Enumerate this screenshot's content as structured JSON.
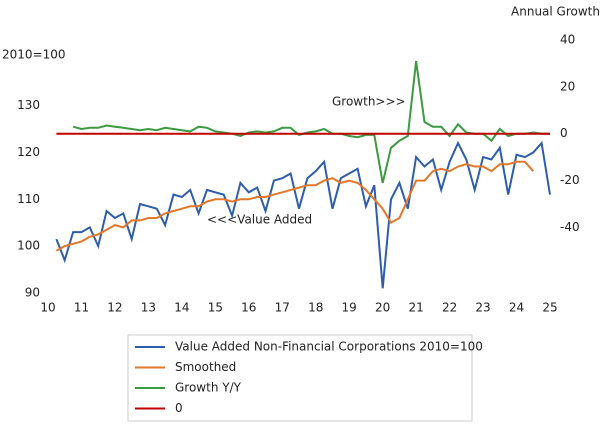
{
  "chart_data": {
    "type": "line",
    "y_label": "2010=100",
    "y2_label": "Annual Growth",
    "annotations": [
      "Growth>>>",
      "<<<Value Added"
    ],
    "x": [
      10.25,
      10.5,
      10.75,
      11,
      11.25,
      11.5,
      11.75,
      12,
      12.25,
      12.5,
      12.75,
      13,
      13.25,
      13.5,
      13.75,
      14,
      14.25,
      14.5,
      14.75,
      15,
      15.25,
      15.5,
      15.75,
      16,
      16.25,
      16.5,
      16.75,
      17,
      17.25,
      17.5,
      17.75,
      18,
      18.25,
      18.5,
      18.75,
      19,
      19.25,
      19.5,
      19.75,
      20,
      20.25,
      20.5,
      20.75,
      21,
      21.25,
      21.5,
      21.75,
      22,
      22.25,
      22.5,
      22.75,
      23,
      23.25,
      23.5,
      23.75,
      24,
      24.25,
      24.5,
      24.75,
      25
    ],
    "series": [
      {
        "name": "Value Added Non-Financial Corporations 2010=100",
        "color": "#2e5daa",
        "axis": "y",
        "values": [
          101.5,
          97,
          103,
          103,
          104,
          100,
          107.5,
          106,
          107,
          101.5,
          109,
          108.5,
          108,
          104.5,
          111,
          110.5,
          112,
          107,
          112,
          111.5,
          111,
          106.5,
          113.5,
          111.5,
          112.5,
          107.5,
          114,
          114.5,
          115.5,
          108,
          114.5,
          116,
          118,
          108,
          114.5,
          115.5,
          116.5,
          108.5,
          113,
          91,
          110,
          113.5,
          108,
          119,
          117,
          118.5,
          112,
          118,
          122,
          118.5,
          112,
          119,
          118.5,
          121,
          111,
          119.5,
          119,
          120,
          122,
          111
        ]
      },
      {
        "name": "Smoothed",
        "color": "#e2782c",
        "axis": "y",
        "values": [
          99,
          100,
          100.5,
          101,
          102,
          102.5,
          103.5,
          104.5,
          104,
          105.5,
          105.5,
          106,
          106,
          107,
          107.5,
          108,
          108.5,
          108.5,
          109.5,
          110,
          110,
          109.5,
          110,
          110,
          110.5,
          110.5,
          111,
          111.5,
          112,
          112.5,
          113,
          113,
          114,
          114.5,
          113.5,
          114,
          113.5,
          112,
          110,
          108,
          105,
          106,
          110,
          114,
          114,
          116,
          116.5,
          116,
          117,
          117.5,
          117,
          117,
          116,
          117.5,
          117.5,
          118,
          118,
          116,
          null,
          null
        ]
      },
      {
        "name": "Growth Y/Y",
        "color": "#3c9a40",
        "axis": "y2",
        "values": [
          null,
          null,
          3,
          2,
          2.5,
          2.5,
          3.5,
          3,
          2.5,
          2,
          1.5,
          2,
          1.5,
          2.5,
          2,
          1.5,
          1,
          3,
          2.5,
          1,
          0.5,
          0,
          -1,
          0.5,
          1,
          0.5,
          1,
          2.5,
          2.5,
          -0.5,
          0.5,
          1,
          2,
          0,
          0,
          -1,
          -1.5,
          -0.5,
          -0.5,
          -21,
          -6,
          -3,
          -1,
          31,
          5,
          3,
          3,
          -1,
          4,
          0.5,
          0,
          0,
          -3,
          2,
          -1,
          0,
          0,
          0.5,
          0,
          0
        ]
      },
      {
        "name": "0",
        "color": "#c00000",
        "axis": "y2",
        "values": [
          0,
          0,
          0,
          0,
          0,
          0,
          0,
          0,
          0,
          0,
          0,
          0,
          0,
          0,
          0,
          0,
          0,
          0,
          0,
          0,
          0,
          0,
          0,
          0,
          0,
          0,
          0,
          0,
          0,
          0,
          0,
          0,
          0,
          0,
          0,
          0,
          0,
          0,
          0,
          0,
          0,
          0,
          0,
          0,
          0,
          0,
          0,
          0,
          0,
          0,
          0,
          0,
          0,
          0,
          0,
          0,
          0,
          0,
          0,
          0
        ]
      }
    ],
    "xlim": [
      10,
      25
    ],
    "xticks": [
      10,
      11,
      12,
      13,
      14,
      15,
      16,
      17,
      18,
      19,
      20,
      21,
      22,
      23,
      24,
      25
    ],
    "ylim": [
      90,
      144
    ],
    "yticks": [
      90,
      100,
      110,
      120,
      130
    ],
    "y2lim": [
      -68,
      40
    ],
    "y2ticks": [
      -40,
      -20,
      0,
      20,
      40
    ],
    "grid": false
  }
}
